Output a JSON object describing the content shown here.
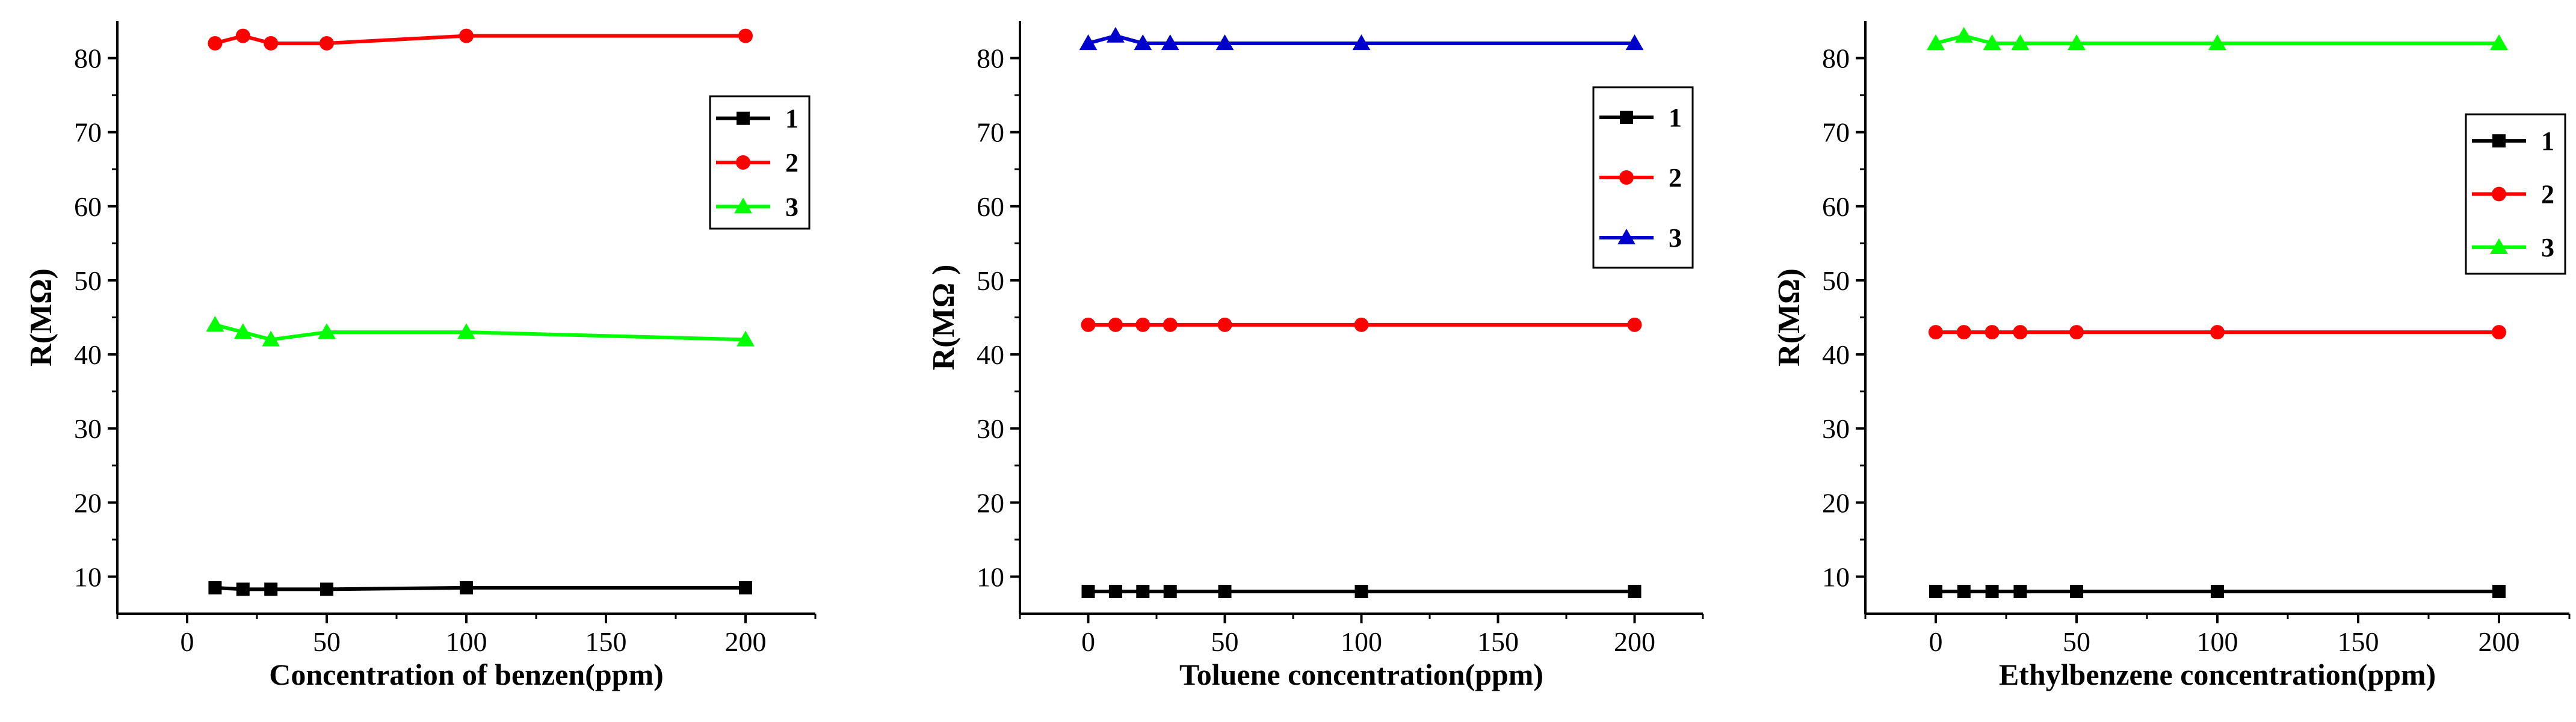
{
  "chart_data": [
    {
      "type": "line",
      "xlabel": "Concentration of benzen(ppm)",
      "ylabel": "R(MΩ)",
      "xlim": [
        -25,
        225
      ],
      "ylim": [
        5,
        85
      ],
      "xticks": [
        0,
        50,
        100,
        150,
        200
      ],
      "yticks": [
        10,
        20,
        30,
        40,
        50,
        60,
        70,
        80
      ],
      "grid": false,
      "legend_position": "right",
      "series": [
        {
          "name": "1",
          "color": "#000000",
          "marker": "square",
          "x": [
            10,
            20,
            30,
            50,
            100,
            200
          ],
          "y": [
            8.5,
            8.3,
            8.3,
            8.3,
            8.5,
            8.5
          ]
        },
        {
          "name": "2",
          "color": "#ff0000",
          "marker": "circle",
          "x": [
            10,
            20,
            30,
            50,
            100,
            200
          ],
          "y": [
            82,
            83,
            82,
            82,
            83,
            83
          ]
        },
        {
          "name": "3",
          "color": "#00ff00",
          "marker": "triangle",
          "x": [
            10,
            20,
            30,
            50,
            100,
            200
          ],
          "y": [
            44,
            43,
            42,
            43,
            43,
            42
          ]
        }
      ]
    },
    {
      "type": "line",
      "xlabel": "Toluene concentration(ppm)",
      "ylabel": "R(MΩ )",
      "xlim": [
        -25,
        225
      ],
      "ylim": [
        5,
        85
      ],
      "xticks": [
        0,
        50,
        100,
        150,
        200
      ],
      "yticks": [
        10,
        20,
        30,
        40,
        50,
        60,
        70,
        80
      ],
      "grid": false,
      "legend_position": "right",
      "series": [
        {
          "name": "1",
          "color": "#000000",
          "marker": "square",
          "x": [
            0,
            10,
            20,
            30,
            50,
            100,
            200
          ],
          "y": [
            8,
            8,
            8,
            8,
            8,
            8,
            8
          ]
        },
        {
          "name": "2",
          "color": "#ff0000",
          "marker": "circle",
          "x": [
            0,
            10,
            20,
            30,
            50,
            100,
            200
          ],
          "y": [
            44,
            44,
            44,
            44,
            44,
            44,
            44
          ]
        },
        {
          "name": "3",
          "color": "#0000cc",
          "marker": "triangle",
          "x": [
            0,
            10,
            20,
            30,
            50,
            100,
            200
          ],
          "y": [
            82,
            83,
            82,
            82,
            82,
            82,
            82
          ]
        }
      ]
    },
    {
      "type": "line",
      "xlabel": "Ethylbenzene concentration(ppm)",
      "ylabel": "R(MΩ)",
      "xlim": [
        -25,
        225
      ],
      "ylim": [
        5,
        85
      ],
      "xticks": [
        0,
        50,
        100,
        150,
        200
      ],
      "yticks": [
        10,
        20,
        30,
        40,
        50,
        60,
        70,
        80
      ],
      "grid": false,
      "legend_position": "right",
      "series": [
        {
          "name": "1",
          "color": "#000000",
          "marker": "square",
          "x": [
            0,
            10,
            20,
            30,
            50,
            100,
            200
          ],
          "y": [
            8,
            8,
            8,
            8,
            8,
            8,
            8
          ]
        },
        {
          "name": "2",
          "color": "#ff0000",
          "marker": "circle",
          "x": [
            0,
            10,
            20,
            30,
            50,
            100,
            200
          ],
          "y": [
            43,
            43,
            43,
            43,
            43,
            43,
            43
          ]
        },
        {
          "name": "3",
          "color": "#00ff00",
          "marker": "triangle",
          "x": [
            0,
            10,
            20,
            30,
            50,
            100,
            200
          ],
          "y": [
            82,
            83,
            82,
            82,
            82,
            82,
            82
          ]
        }
      ]
    }
  ]
}
